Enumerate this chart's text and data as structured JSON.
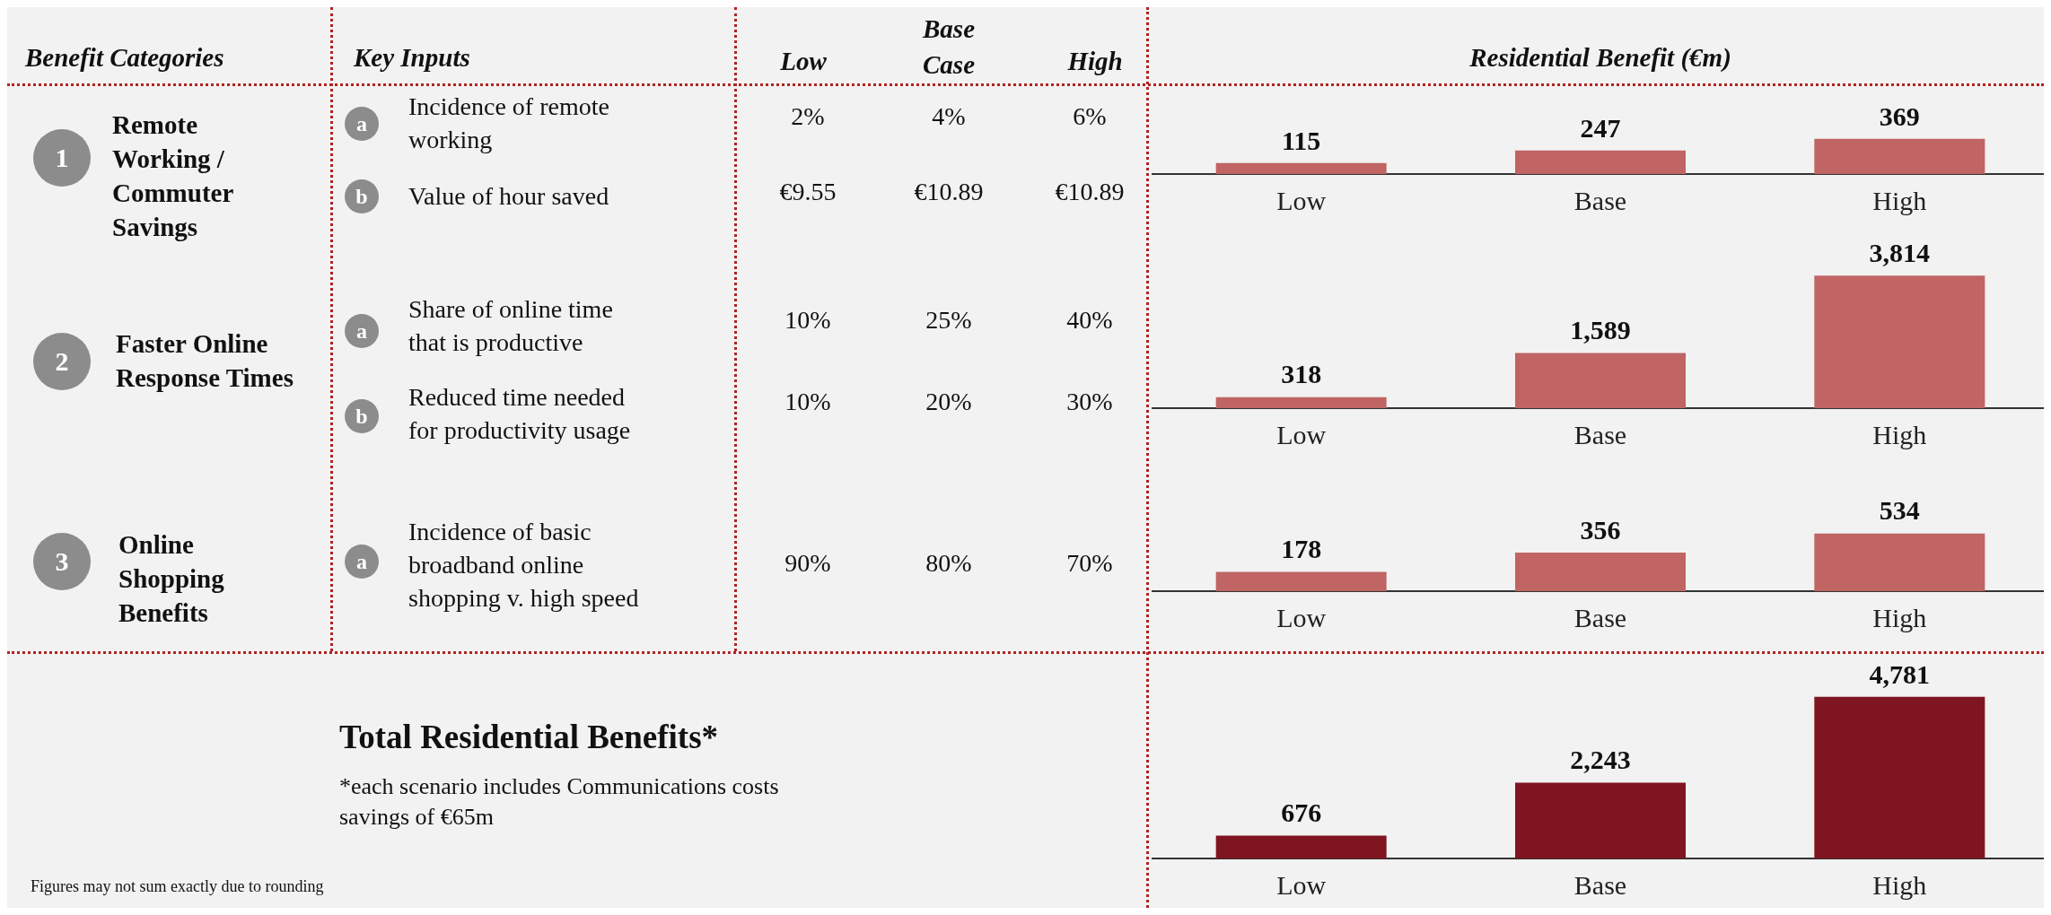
{
  "chart_data": [
    {
      "type": "other",
      "annotations": [
        "Benefit Categories",
        "Key Inputs",
        "Low",
        "Base Case",
        "High",
        "1",
        "Remote Working / Commuter Savings",
        "a",
        "Incidence of remote working",
        "2%",
        "4%",
        "6%",
        "b",
        "Value of hour saved",
        "€9.55",
        "€10.89",
        "€10.89",
        "2",
        "Faster Online Response Times",
        "a",
        "Share of online time that is productive",
        "10%",
        "25%",
        "40%",
        "b",
        "Reduced time needed for productivity usage",
        "10%",
        "20%",
        "30%",
        "3",
        "Online Shopping Benefits",
        "a",
        "Incidence of basic broadband online shopping v. high speed",
        "90%",
        "80%",
        "70%",
        "Total Residential Benefits*",
        "*each scenario includes Communications costs savings of €65m",
        "Figures may not sum exactly due to rounding"
      ]
    },
    {
      "type": "bar",
      "title": "Residential Benefit (€m)",
      "categories": [
        "Low",
        "Base",
        "High"
      ],
      "values": [
        115,
        247,
        369
      ],
      "color": "#c06464",
      "value_labels": [
        "115",
        "247",
        "369"
      ]
    },
    {
      "type": "bar",
      "categories": [
        "Low",
        "Base",
        "High"
      ],
      "values": [
        318,
        1589,
        3814
      ],
      "color": "#c06464",
      "value_labels": [
        "318",
        "1,589",
        "3,814"
      ]
    },
    {
      "type": "bar",
      "categories": [
        "Low",
        "Base",
        "High"
      ],
      "values": [
        178,
        356,
        534
      ],
      "color": "#c06464",
      "value_labels": [
        "178",
        "356",
        "534"
      ]
    },
    {
      "type": "bar",
      "categories": [
        "Low",
        "Base",
        "High"
      ],
      "values": [
        676,
        2243,
        4781
      ],
      "color": "#7f1520",
      "value_labels": [
        "676",
        "2,243",
        "4,781"
      ]
    }
  ]
}
